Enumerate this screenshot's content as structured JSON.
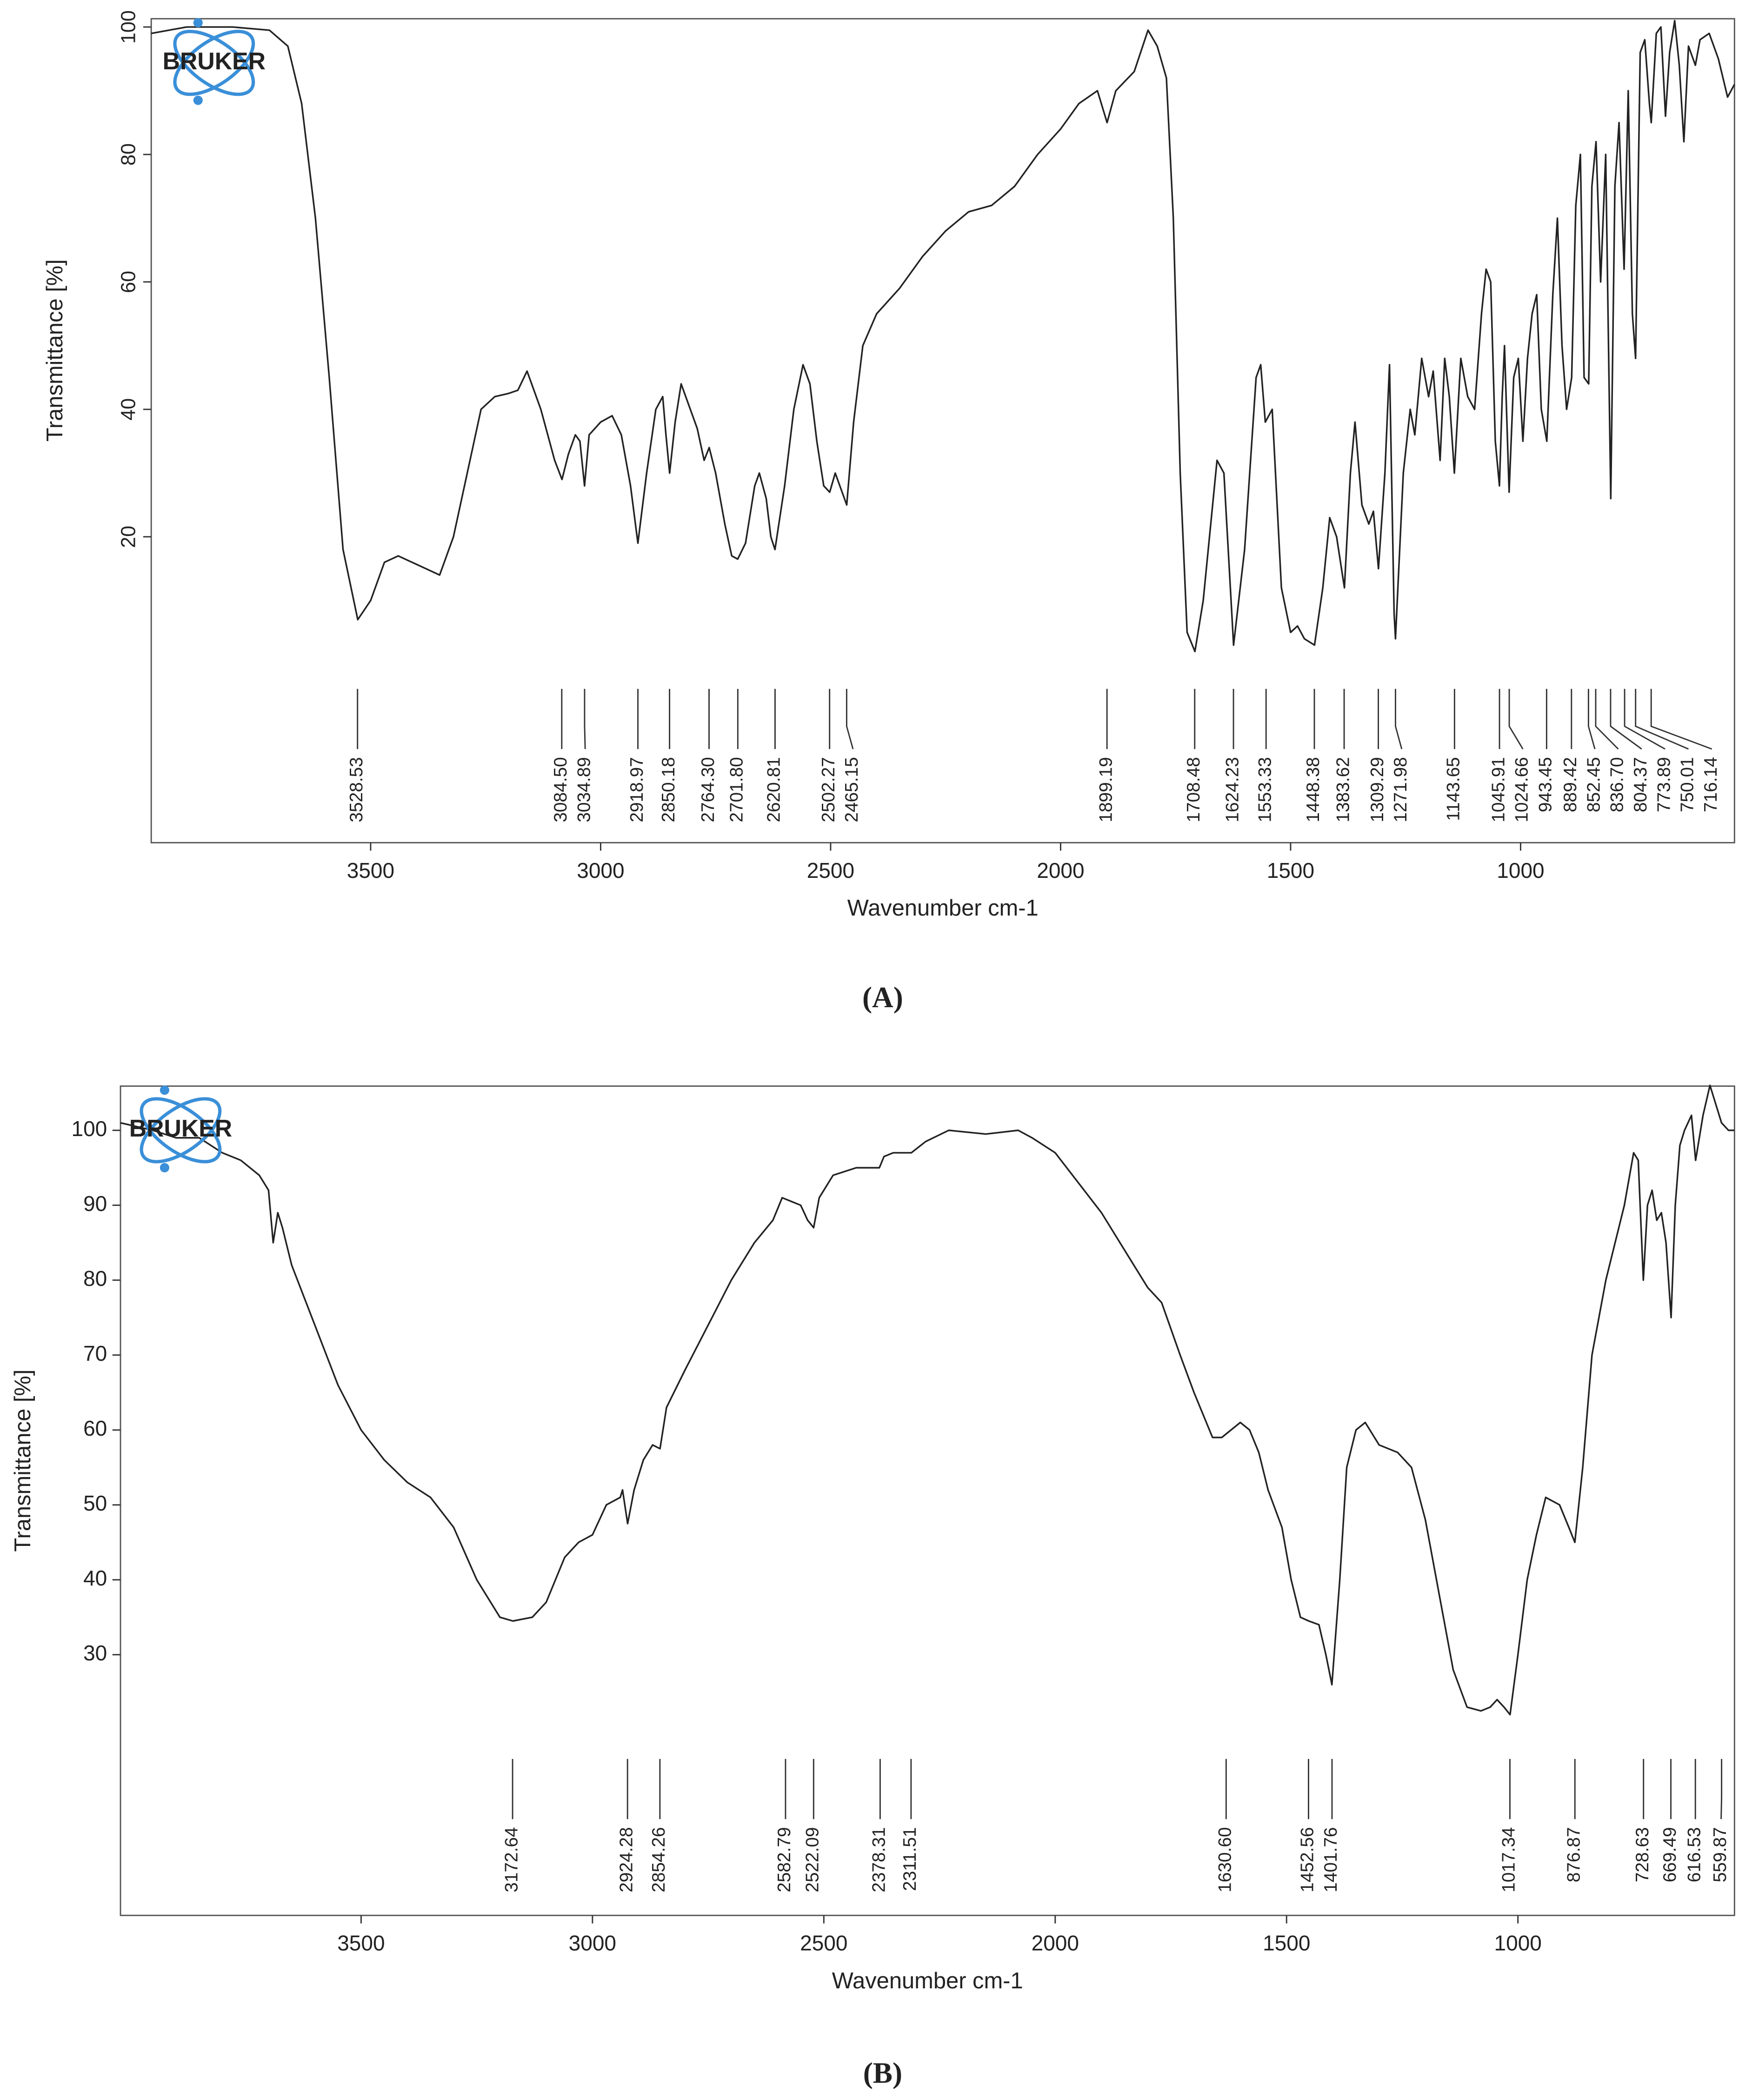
{
  "chart_data": [
    {
      "type": "line",
      "logo": "BRUKER",
      "caption": "(A)",
      "x_label": "Wavenumber cm-1",
      "y_label": "Transmittance [%]",
      "color": "#222222",
      "xlim": [
        3977,
        535
      ],
      "ylim": [
        -28,
        101.3
      ],
      "xticks": [
        3500,
        3000,
        2500,
        2000,
        1500,
        1000
      ],
      "yticks": [
        20,
        40,
        60,
        80,
        100
      ],
      "x": [
        3977,
        3900,
        3800,
        3720,
        3680,
        3650,
        3620,
        3590,
        3560,
        3528,
        3500,
        3470,
        3440,
        3410,
        3380,
        3350,
        3320,
        3290,
        3260,
        3230,
        3200,
        3180,
        3160,
        3130,
        3100,
        3084,
        3070,
        3055,
        3045,
        3035,
        3025,
        3000,
        2975,
        2955,
        2935,
        2919,
        2900,
        2880,
        2865,
        2858,
        2850,
        2838,
        2825,
        2805,
        2790,
        2775,
        2764,
        2750,
        2730,
        2715,
        2702,
        2685,
        2665,
        2655,
        2640,
        2630,
        2621,
        2600,
        2580,
        2560,
        2545,
        2530,
        2515,
        2502,
        2490,
        2475,
        2465,
        2450,
        2430,
        2400,
        2350,
        2300,
        2250,
        2200,
        2150,
        2100,
        2050,
        2000,
        1960,
        1920,
        1899,
        1880,
        1840,
        1810,
        1790,
        1770,
        1755,
        1740,
        1725,
        1708,
        1690,
        1660,
        1645,
        1624,
        1600,
        1575,
        1565,
        1555,
        1540,
        1520,
        1500,
        1485,
        1470,
        1448,
        1430,
        1415,
        1400,
        1383,
        1370,
        1360,
        1345,
        1330,
        1320,
        1309,
        1295,
        1285,
        1275,
        1272,
        1255,
        1240,
        1230,
        1215,
        1200,
        1190,
        1175,
        1165,
        1155,
        1144,
        1130,
        1115,
        1100,
        1085,
        1075,
        1065,
        1055,
        1046,
        1040,
        1035,
        1025,
        1015,
        1005,
        995,
        985,
        975,
        965,
        955,
        943,
        930,
        920,
        910,
        900,
        889,
        880,
        870,
        862,
        852,
        845,
        836,
        826,
        815,
        804,
        795,
        786,
        775,
        766,
        757,
        750,
        740,
        730,
        720,
        716,
        705,
        695,
        685,
        676,
        665,
        655,
        645,
        635,
        620,
        610,
        590,
        570,
        550,
        535
      ],
      "values": [
        99,
        100,
        100,
        99.5,
        97,
        88,
        70,
        45,
        18,
        7,
        10,
        16,
        17,
        16,
        15,
        14,
        20,
        30,
        40,
        42,
        42.5,
        43,
        46,
        40,
        32,
        29,
        33,
        36,
        35,
        28,
        36,
        38,
        39,
        36,
        28,
        19,
        30,
        40,
        42,
        36,
        30,
        38,
        44,
        40,
        37,
        32,
        34,
        30,
        22,
        17,
        16.5,
        19,
        28,
        30,
        26,
        20,
        18,
        28,
        40,
        47,
        44,
        35,
        28,
        27,
        30,
        27,
        25,
        38,
        50,
        55,
        59,
        64,
        68,
        71,
        72,
        75,
        80,
        84,
        88,
        90,
        85,
        90,
        93,
        99.5,
        97,
        92,
        70,
        30,
        5,
        2,
        10,
        32,
        30,
        3,
        18,
        45,
        47,
        38,
        40,
        12,
        5,
        6,
        4,
        3,
        12,
        23,
        20,
        12,
        30,
        38,
        25,
        22,
        24,
        15,
        30,
        47,
        8,
        4,
        30,
        40,
        36,
        48,
        42,
        46,
        32,
        48,
        42,
        30,
        48,
        42,
        40,
        55,
        62,
        60,
        35,
        28,
        42,
        50,
        27,
        45,
        48,
        35,
        48,
        55,
        58,
        40,
        35,
        58,
        70,
        50,
        40,
        45,
        72,
        80,
        45,
        44,
        75,
        82,
        60,
        80,
        26,
        75,
        85,
        62,
        90,
        55,
        48,
        96,
        98,
        88,
        85,
        99,
        100,
        86,
        96,
        101,
        94,
        82,
        97,
        94,
        98,
        99,
        95,
        89,
        91
      ],
      "peaks": [
        3528.53,
        {
          "value": 3084.5,
          "label": "3084.50"
        },
        3034.89,
        2918.97,
        2850.18,
        {
          "value": 2764.3,
          "label": "2764.30"
        },
        {
          "value": 2701.8,
          "label": "2701.80"
        },
        2620.81,
        2502.27,
        2465.15,
        1899.19,
        1708.48,
        1624.23,
        1553.33,
        1448.38,
        1383.62,
        1309.29,
        1271.98,
        1143.65,
        1045.91,
        1024.66,
        943.45,
        889.42,
        852.45,
        {
          "value": 836.7,
          "label": "836.70"
        },
        804.37,
        773.89,
        750.01,
        716.14
      ]
    },
    {
      "type": "line",
      "logo": "BRUKER",
      "caption": "(B)",
      "x_label": "Wavenumber cm-1",
      "y_label": "Transmittance [%]",
      "color": "#222222",
      "xlim": [
        4020,
        532
      ],
      "ylim": [
        -4.8,
        105.9
      ],
      "xticks": [
        3500,
        3000,
        2500,
        2000,
        1500,
        1000
      ],
      "yticks": [
        30,
        40,
        50,
        60,
        70,
        80,
        90,
        100
      ],
      "x": [
        4020,
        3950,
        3900,
        3850,
        3800,
        3760,
        3720,
        3700,
        3690,
        3680,
        3670,
        3650,
        3600,
        3550,
        3500,
        3450,
        3400,
        3350,
        3300,
        3250,
        3200,
        3172,
        3130,
        3100,
        3060,
        3030,
        3000,
        2970,
        2940,
        2935,
        2924,
        2910,
        2890,
        2870,
        2854,
        2840,
        2800,
        2750,
        2700,
        2650,
        2610,
        2590,
        2570,
        2550,
        2535,
        2522,
        2510,
        2480,
        2430,
        2380,
        2370,
        2350,
        2311,
        2280,
        2230,
        2150,
        2080,
        2050,
        2000,
        1950,
        1900,
        1850,
        1800,
        1770,
        1730,
        1700,
        1680,
        1660,
        1640,
        1620,
        1600,
        1580,
        1560,
        1540,
        1510,
        1490,
        1470,
        1452,
        1430,
        1415,
        1402,
        1385,
        1370,
        1350,
        1330,
        1300,
        1260,
        1230,
        1200,
        1170,
        1140,
        1110,
        1080,
        1060,
        1045,
        1030,
        1017,
        1000,
        980,
        960,
        940,
        910,
        890,
        877,
        860,
        840,
        810,
        790,
        770,
        750,
        740,
        729,
        720,
        710,
        700,
        690,
        680,
        669,
        660,
        650,
        640,
        625,
        616,
        600,
        585,
        570,
        560,
        545,
        532
      ],
      "values": [
        101,
        100,
        99,
        99,
        97,
        96,
        94,
        92,
        85,
        89,
        87,
        82,
        74,
        66,
        60,
        56,
        53,
        51,
        47,
        40,
        35,
        34.5,
        35,
        37,
        43,
        45,
        46,
        50,
        51,
        52,
        47.5,
        52,
        56,
        58,
        57.5,
        63,
        68,
        74,
        80,
        85,
        88,
        91,
        90.5,
        90,
        88,
        87,
        91,
        94,
        95,
        95,
        96.5,
        97,
        97,
        98.5,
        100,
        99.5,
        100,
        99,
        97,
        93,
        89,
        84,
        79,
        77,
        70,
        65,
        62,
        59,
        59,
        60,
        61,
        60,
        57,
        52,
        47,
        40,
        35,
        34.5,
        34,
        30,
        26,
        40,
        55,
        60,
        61,
        58,
        57,
        55,
        48,
        38,
        28,
        23,
        22.5,
        23,
        24,
        23,
        22,
        30,
        40,
        46,
        51,
        50,
        47,
        45,
        55,
        70,
        80,
        85,
        90,
        97,
        96,
        80,
        90,
        92,
        88,
        89,
        85,
        75,
        90,
        98,
        100,
        102,
        96,
        102,
        106,
        103,
        101,
        100,
        100
      ],
      "peaks": [
        3172.64,
        2924.28,
        2854.26,
        2582.79,
        2522.09,
        2378.31,
        2311.51,
        {
          "value": 1630.6,
          "label": "1630.60"
        },
        1452.56,
        1401.76,
        1017.34,
        876.87,
        728.63,
        669.49,
        616.53,
        559.87
      ]
    }
  ]
}
